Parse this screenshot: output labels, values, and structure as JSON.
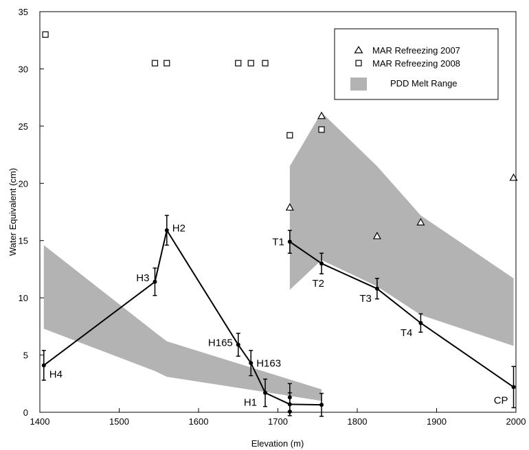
{
  "chart_data": {
    "type": "line",
    "title": "",
    "xlabel": "Elevation (m)",
    "ylabel": "Water Equivalent (cm)",
    "xlim": [
      1400,
      2000
    ],
    "ylim": [
      0,
      35
    ],
    "xticks": [
      1400,
      1500,
      1600,
      1700,
      1800,
      1900,
      2000
    ],
    "yticks": [
      0,
      5,
      10,
      15,
      20,
      25,
      30,
      35
    ],
    "grid": false,
    "legend_position": "top-right",
    "legend": [
      {
        "label": "MAR Refreezing 2007",
        "marker": "triangle"
      },
      {
        "label": "MAR Refreezing 2008",
        "marker": "square"
      },
      {
        "label": "PDD Melt Range",
        "marker": "band"
      }
    ],
    "band_color": "#b3b3b3",
    "pdd_bands": [
      {
        "upper": [
          [
            1405,
            14.6
          ],
          [
            1545,
            7.0
          ],
          [
            1560,
            6.2
          ],
          [
            1755,
            2.0
          ]
        ],
        "lower": [
          [
            1405,
            7.3
          ],
          [
            1545,
            3.6
          ],
          [
            1560,
            3.1
          ],
          [
            1755,
            1.0
          ]
        ]
      },
      {
        "upper": [
          [
            1715,
            21.5
          ],
          [
            1755,
            26.2
          ],
          [
            1825,
            21.5
          ],
          [
            1880,
            17.2
          ],
          [
            1997,
            11.7
          ]
        ],
        "lower": [
          [
            1715,
            10.7
          ],
          [
            1755,
            13.3
          ],
          [
            1825,
            11.0
          ],
          [
            1880,
            8.5
          ],
          [
            1997,
            5.8
          ]
        ]
      }
    ],
    "mar_2007": {
      "x": [
        1715,
        1755,
        1825,
        1880,
        1997
      ],
      "y": [
        17.9,
        25.9,
        15.4,
        16.6,
        20.5
      ]
    },
    "mar_2008": {
      "x": [
        1407,
        1545,
        1560,
        1650,
        1666,
        1684,
        1715,
        1755
      ],
      "y": [
        33.0,
        30.5,
        30.5,
        30.5,
        30.5,
        30.5,
        24.2,
        24.7
      ]
    },
    "series": [
      {
        "x": [
          1405,
          1545,
          1560,
          1650,
          1666,
          1684,
          1715,
          1755
        ],
        "y": [
          4.1,
          11.4,
          15.9,
          5.9,
          4.3,
          1.7,
          0.7,
          0.65
        ],
        "err": [
          1.3,
          1.2,
          1.3,
          1.0,
          1.1,
          1.2,
          1.0,
          1.0
        ]
      },
      {
        "x": [
          1715,
          1755,
          1825,
          1880,
          1997
        ],
        "y": [
          14.9,
          13.0,
          10.8,
          7.8,
          2.2
        ],
        "err": [
          1.0,
          0.9,
          0.9,
          0.8,
          1.8
        ]
      }
    ],
    "extra_points": [
      {
        "x": 1715,
        "y": 1.3,
        "err": 1.2
      },
      {
        "x": 1715,
        "y": 0.05,
        "err": 0
      }
    ],
    "point_labels": [
      {
        "text": "H4",
        "x": 1405,
        "y": 4.1,
        "anchor": "right"
      },
      {
        "text": "H3",
        "x": 1545,
        "y": 11.4,
        "anchor": "left"
      },
      {
        "text": "H2",
        "x": 1560,
        "y": 15.9,
        "anchor": "right"
      },
      {
        "text": "H165",
        "x": 1650,
        "y": 5.9,
        "anchor": "left"
      },
      {
        "text": "H163",
        "x": 1666,
        "y": 4.3,
        "anchor": "right"
      },
      {
        "text": "H1",
        "x": 1684,
        "y": 1.7,
        "anchor": "left"
      },
      {
        "text": "T1",
        "x": 1715,
        "y": 14.9,
        "anchor": "left"
      },
      {
        "text": "T2",
        "x": 1755,
        "y": 13.0,
        "anchor": "left"
      },
      {
        "text": "T3",
        "x": 1825,
        "y": 10.8,
        "anchor": "left"
      },
      {
        "text": "T4",
        "x": 1880,
        "y": 7.8,
        "anchor": "left"
      },
      {
        "text": "CP",
        "x": 1997,
        "y": 2.2,
        "anchor": "left"
      }
    ]
  }
}
